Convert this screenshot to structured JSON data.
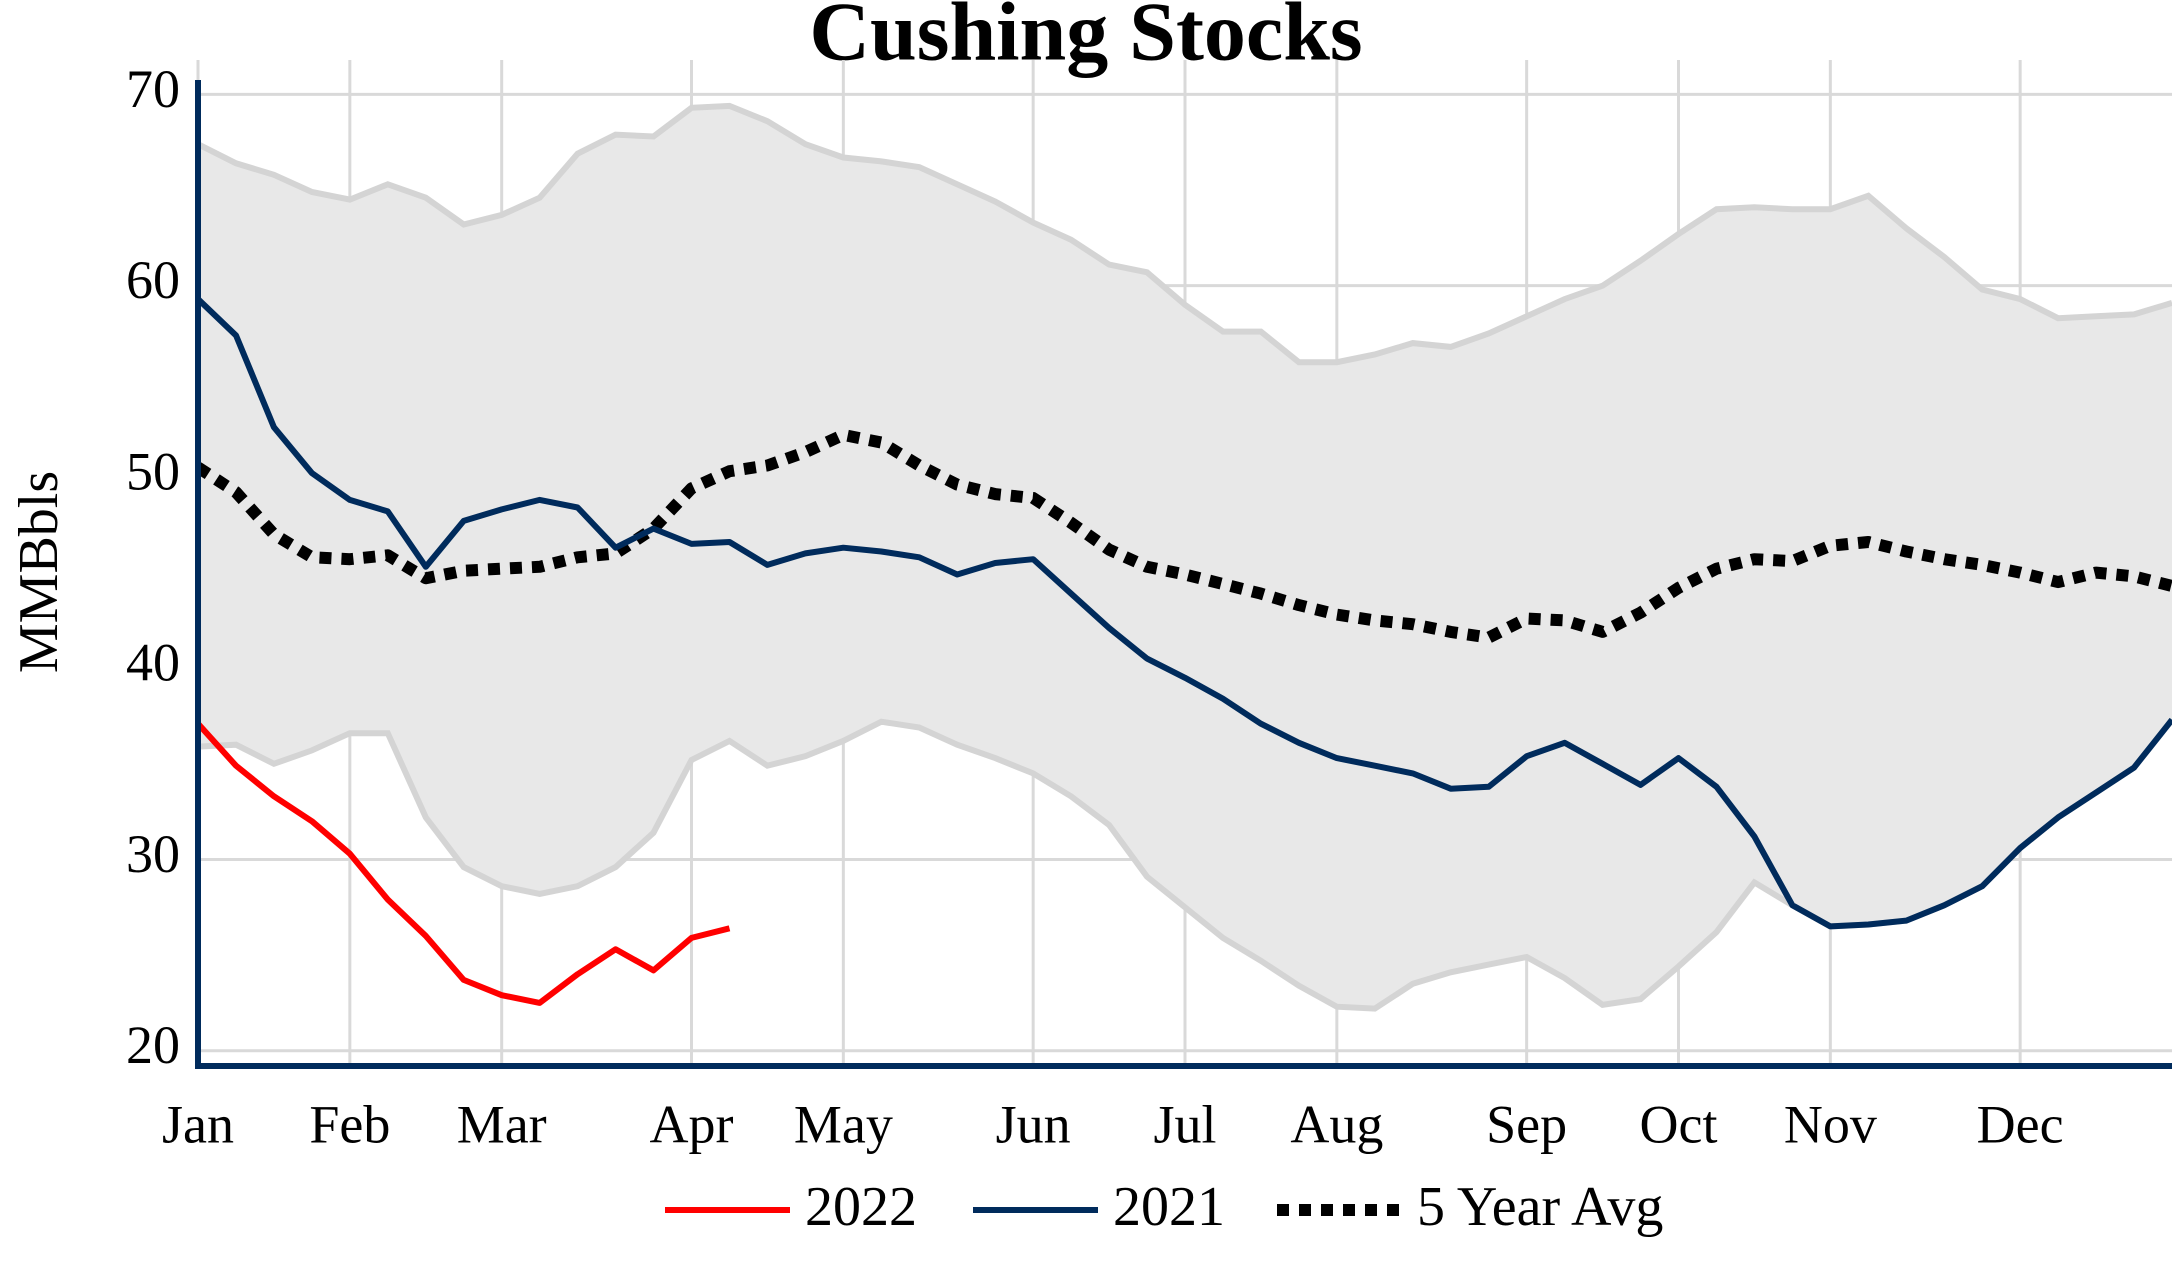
{
  "chart_data": {
    "type": "line",
    "title": "Cushing Stocks",
    "y_label": "MMBbls",
    "categories": [
      "Jan",
      null,
      null,
      null,
      "Feb",
      null,
      null,
      null,
      "Mar",
      null,
      null,
      null,
      null,
      "Apr",
      null,
      null,
      null,
      "May",
      null,
      null,
      null,
      null,
      "Jun",
      null,
      null,
      null,
      "Jul",
      null,
      null,
      null,
      "Aug",
      null,
      null,
      null,
      null,
      "Sep",
      null,
      null,
      null,
      "Oct",
      null,
      null,
      null,
      "Nov",
      null,
      null,
      null,
      null,
      "Dec",
      null,
      null,
      null,
      null
    ],
    "series": [
      {
        "name": "2022",
        "color": "#ff0000",
        "style": "solid",
        "values": [
          37.1,
          34.9,
          33.3,
          32.0,
          30.3,
          27.9,
          26.0,
          23.7,
          22.9,
          22.5,
          24.0,
          25.3,
          24.2,
          25.9,
          26.4,
          null,
          null,
          null,
          null,
          null,
          null,
          null,
          null,
          null,
          null,
          null,
          null,
          null,
          null,
          null,
          null,
          null,
          null,
          null,
          null,
          null,
          null,
          null,
          null,
          null,
          null,
          null,
          null,
          null,
          null,
          null,
          null,
          null,
          null,
          null,
          null,
          null,
          null
        ]
      },
      {
        "name": "2021",
        "color": "#002b5c",
        "style": "solid",
        "values": [
          59.3,
          57.4,
          52.6,
          50.2,
          48.8,
          48.2,
          45.3,
          47.7,
          48.3,
          48.8,
          48.4,
          46.3,
          47.3,
          46.5,
          46.6,
          45.4,
          46.0,
          46.3,
          46.1,
          45.8,
          44.9,
          45.5,
          45.7,
          43.9,
          42.1,
          40.5,
          39.5,
          38.4,
          37.1,
          36.1,
          35.3,
          34.9,
          34.5,
          33.7,
          33.8,
          35.4,
          36.1,
          35.0,
          33.9,
          35.3,
          33.8,
          31.2,
          27.6,
          26.5,
          26.6,
          26.8,
          27.6,
          28.6,
          30.6,
          32.2,
          33.5,
          34.8,
          37.3
        ]
      },
      {
        "name": "5 Year Avg",
        "color": "#000000",
        "style": "dotted",
        "values": [
          50.5,
          49.2,
          47.0,
          45.8,
          45.7,
          45.9,
          44.7,
          45.1,
          45.2,
          45.3,
          45.8,
          46.0,
          47.3,
          49.4,
          50.3,
          50.6,
          51.3,
          52.2,
          51.8,
          50.6,
          49.6,
          49.1,
          48.9,
          47.6,
          46.2,
          45.3,
          44.9,
          44.4,
          43.9,
          43.3,
          42.8,
          42.5,
          42.3,
          41.9,
          41.6,
          42.6,
          42.5,
          41.9,
          42.9,
          44.2,
          45.2,
          45.7,
          45.6,
          46.4,
          46.6,
          46.1,
          45.7,
          45.4,
          45.0,
          44.5,
          45.0,
          44.8,
          44.3
        ]
      }
    ],
    "band": {
      "color": "#e8e8e8",
      "edge_color": "#d4d4d4",
      "upper": [
        67.4,
        66.4,
        65.8,
        64.9,
        64.5,
        65.3,
        64.6,
        63.2,
        63.7,
        64.6,
        66.9,
        67.9,
        67.8,
        69.3,
        69.4,
        68.6,
        67.4,
        66.7,
        66.5,
        66.2,
        65.3,
        64.4,
        63.3,
        62.4,
        61.1,
        60.7,
        59.0,
        57.6,
        57.6,
        56.0,
        56.0,
        56.4,
        57.0,
        56.8,
        57.5,
        58.4,
        59.3,
        60.0,
        61.3,
        62.7,
        64.0,
        64.1,
        64.0,
        64.0,
        64.7,
        63.0,
        61.5,
        59.8,
        59.3,
        58.3,
        58.4,
        58.5,
        59.1
      ],
      "lower": [
        35.9,
        36.0,
        35.0,
        35.7,
        36.6,
        36.6,
        32.2,
        29.6,
        28.6,
        28.2,
        28.6,
        29.6,
        31.4,
        35.2,
        36.2,
        34.9,
        35.4,
        36.2,
        37.2,
        36.9,
        36.0,
        35.3,
        34.5,
        33.3,
        31.8,
        29.1,
        27.5,
        25.9,
        24.7,
        23.4,
        22.3,
        22.2,
        23.5,
        24.1,
        24.5,
        24.9,
        23.8,
        22.4,
        22.7,
        24.4,
        26.2,
        28.8,
        27.6,
        26.5,
        26.6,
        26.8,
        27.6,
        28.6,
        30.6,
        32.2,
        33.5,
        34.8,
        37.3
      ]
    },
    "ylim": [
      19.2,
      71.8
    ],
    "yticks": [
      20,
      30,
      40,
      50,
      60,
      70
    ],
    "grid": true,
    "axis_color": "#002b5c",
    "legend": "bottom"
  }
}
